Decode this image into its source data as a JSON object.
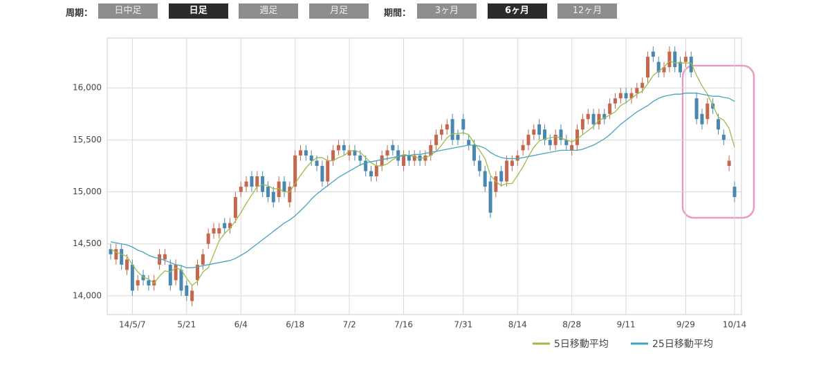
{
  "toolbar": {
    "period_label": "周期：",
    "period_buttons": [
      {
        "label": "日中足",
        "active": false
      },
      {
        "label": "日足",
        "active": true
      },
      {
        "label": "週足",
        "active": false
      },
      {
        "label": "月足",
        "active": false
      }
    ],
    "range_label": "期間：",
    "range_buttons": [
      {
        "label": "3ヶ月",
        "active": false
      },
      {
        "label": "6ヶ月",
        "active": true
      },
      {
        "label": "12ヶ月",
        "active": false
      }
    ]
  },
  "chart_data": {
    "type": "candlestick",
    "categories": [
      null,
      null,
      null,
      null,
      "14/5/7",
      null,
      null,
      null,
      null,
      null,
      null,
      null,
      null,
      null,
      "5/21",
      null,
      null,
      null,
      null,
      null,
      null,
      null,
      null,
      null,
      "6/4",
      null,
      null,
      null,
      null,
      null,
      null,
      null,
      null,
      null,
      "6/18",
      null,
      null,
      null,
      null,
      null,
      null,
      null,
      null,
      null,
      "7/2",
      null,
      null,
      null,
      null,
      null,
      null,
      null,
      null,
      null,
      "7/16",
      null,
      null,
      null,
      null,
      null,
      null,
      null,
      null,
      null,
      null,
      "7/31",
      null,
      null,
      null,
      null,
      null,
      null,
      null,
      null,
      null,
      "8/14",
      null,
      null,
      null,
      null,
      null,
      null,
      null,
      null,
      null,
      "8/28",
      null,
      null,
      null,
      null,
      null,
      null,
      null,
      null,
      null,
      "9/11",
      null,
      null,
      null,
      null,
      null,
      null,
      null,
      null,
      null,
      null,
      "9/29",
      null,
      null,
      null,
      null,
      null,
      null,
      null,
      null,
      "10/14"
    ],
    "open": [
      14450,
      14350,
      14450,
      14250,
      14300,
      14100,
      14200,
      14150,
      14100,
      14300,
      14350,
      14300,
      14150,
      14250,
      14100,
      13950,
      14150,
      14300,
      14500,
      14600,
      14600,
      14700,
      14650,
      14750,
      15000,
      15050,
      15150,
      15050,
      15150,
      15050,
      15000,
      14950,
      15100,
      14900,
      15050,
      15350,
      15400,
      15350,
      15300,
      15250,
      15100,
      15300,
      15400,
      15450,
      15350,
      15400,
      15350,
      15300,
      15200,
      15150,
      15250,
      15350,
      15450,
      15400,
      15250,
      15350,
      15300,
      15350,
      15300,
      15350,
      15450,
      15550,
      15600,
      15700,
      15550,
      15700,
      15500,
      15450,
      15300,
      15200,
      15100,
      15000,
      15200,
      15100,
      15250,
      15300,
      15400,
      15450,
      15550,
      15650,
      15600,
      15500,
      15450,
      15600,
      15500,
      15400,
      15450,
      15600,
      15700,
      15750,
      15650,
      15750,
      15750,
      15850,
      15900,
      15950,
      15900,
      15950,
      16000,
      16100,
      16350,
      16250,
      16150,
      16200,
      16350,
      16250,
      16250,
      16300,
      15900,
      15750,
      15700,
      15850,
      15700,
      15550,
      15250,
      15050
    ],
    "high": [
      14500,
      14500,
      14500,
      14400,
      14350,
      14200,
      14250,
      14200,
      14200,
      14450,
      14450,
      14350,
      14350,
      14300,
      14150,
      14100,
      14350,
      14450,
      14650,
      14700,
      14700,
      14750,
      14750,
      15000,
      15100,
      15150,
      15200,
      15200,
      15200,
      15100,
      15050,
      15150,
      15150,
      15100,
      15400,
      15450,
      15450,
      15400,
      15350,
      15300,
      15350,
      15450,
      15500,
      15500,
      15450,
      15450,
      15400,
      15350,
      15250,
      15300,
      15400,
      15450,
      15500,
      15450,
      15400,
      15400,
      15400,
      15400,
      15400,
      15500,
      15600,
      15650,
      15700,
      15750,
      15600,
      15750,
      15550,
      15500,
      15350,
      15250,
      15150,
      15200,
      15250,
      15350,
      15350,
      15400,
      15500,
      15600,
      15650,
      15700,
      15650,
      15550,
      15600,
      15650,
      15550,
      15500,
      15650,
      15750,
      15800,
      15800,
      15800,
      15800,
      15900,
      15950,
      16000,
      16000,
      16000,
      16050,
      16100,
      16350,
      16400,
      16300,
      16250,
      16400,
      16400,
      16300,
      16350,
      16350,
      15950,
      15800,
      15900,
      15900,
      15750,
      15600,
      15350,
      15100
    ],
    "low": [
      14350,
      14300,
      14250,
      14200,
      14000,
      14050,
      14100,
      14050,
      14050,
      14250,
      14300,
      14050,
      14100,
      14000,
      13950,
      13900,
      14100,
      14250,
      14450,
      14550,
      14550,
      14600,
      14600,
      14700,
      14950,
      15000,
      15000,
      15000,
      14950,
      14900,
      14850,
      14900,
      14950,
      14850,
      15000,
      15300,
      15300,
      15250,
      15200,
      15050,
      15050,
      15250,
      15350,
      15350,
      15300,
      15300,
      15250,
      15150,
      15100,
      15100,
      15200,
      15300,
      15350,
      15250,
      15200,
      15250,
      15250,
      15250,
      15250,
      15300,
      15400,
      15500,
      15550,
      15450,
      15450,
      15550,
      15400,
      15250,
      15150,
      15000,
      14750,
      14950,
      15050,
      15050,
      15200,
      15250,
      15350,
      15400,
      15500,
      15500,
      15450,
      15400,
      15400,
      15450,
      15400,
      15350,
      15400,
      15550,
      15650,
      15600,
      15600,
      15650,
      15700,
      15800,
      15850,
      15850,
      15850,
      15900,
      15950,
      16050,
      16250,
      16100,
      16100,
      16150,
      16150,
      16100,
      16200,
      16100,
      15650,
      15600,
      15650,
      15750,
      15550,
      15450,
      15200,
      14900
    ],
    "close": [
      14400,
      14450,
      14300,
      14350,
      14050,
      14150,
      14150,
      14100,
      14150,
      14400,
      14400,
      14100,
      14300,
      14050,
      14000,
      14050,
      14300,
      14400,
      14600,
      14650,
      14650,
      14650,
      14700,
      14950,
      15050,
      15100,
      15050,
      15150,
      15000,
      14950,
      14900,
      15100,
      15000,
      15050,
      15350,
      15400,
      15350,
      15300,
      15250,
      15100,
      15300,
      15400,
      15450,
      15400,
      15400,
      15350,
      15300,
      15200,
      15150,
      15250,
      15350,
      15400,
      15400,
      15300,
      15350,
      15300,
      15350,
      15300,
      15350,
      15450,
      15550,
      15600,
      15650,
      15500,
      15500,
      15600,
      15450,
      15300,
      15200,
      15050,
      14800,
      15150,
      15100,
      15300,
      15300,
      15350,
      15450,
      15550,
      15600,
      15550,
      15500,
      15450,
      15550,
      15500,
      15450,
      15450,
      15600,
      15700,
      15750,
      15650,
      15750,
      15700,
      15850,
      15900,
      15950,
      15900,
      15950,
      16000,
      16050,
      16300,
      16300,
      16150,
      16200,
      16350,
      16200,
      16150,
      16300,
      16150,
      15700,
      15650,
      15850,
      15800,
      15600,
      15500,
      15300,
      14950
    ],
    "up_color": "#c4674c",
    "down_color": "#4a87b0",
    "series": [
      {
        "name": "5日移動平均",
        "color": "#9cbb4a",
        "values": [
          14450,
          14420,
          14400,
          14380,
          14300,
          14230,
          14180,
          14160,
          14120,
          14190,
          14240,
          14230,
          14270,
          14250,
          14170,
          14100,
          14140,
          14230,
          14270,
          14400,
          14530,
          14600,
          14650,
          14720,
          14800,
          14890,
          14970,
          15050,
          15070,
          15060,
          15030,
          15030,
          15000,
          15000,
          15080,
          15160,
          15230,
          15290,
          15330,
          15330,
          15300,
          15300,
          15330,
          15350,
          15390,
          15400,
          15380,
          15330,
          15280,
          15250,
          15250,
          15270,
          15310,
          15340,
          15360,
          15350,
          15340,
          15320,
          15330,
          15350,
          15390,
          15450,
          15520,
          15560,
          15560,
          15570,
          15550,
          15470,
          15400,
          15320,
          15160,
          15100,
          15060,
          15080,
          15080,
          15160,
          15240,
          15340,
          15430,
          15490,
          15510,
          15520,
          15530,
          15520,
          15500,
          15480,
          15510,
          15550,
          15590,
          15630,
          15690,
          15710,
          15740,
          15770,
          15830,
          15860,
          15900,
          15940,
          15970,
          16040,
          16120,
          16160,
          16200,
          16260,
          16240,
          16240,
          16240,
          16240,
          16120,
          16020,
          15940,
          15830,
          15720,
          15690,
          15610,
          15430
        ]
      },
      {
        "name": "25日移動平均",
        "color": "#45a3bd",
        "values": [
          14520,
          14510,
          14500,
          14490,
          14470,
          14440,
          14420,
          14390,
          14370,
          14360,
          14340,
          14320,
          14300,
          14290,
          14270,
          14270,
          14280,
          14290,
          14300,
          14310,
          14320,
          14330,
          14340,
          14360,
          14390,
          14420,
          14460,
          14500,
          14540,
          14580,
          14620,
          14660,
          14700,
          14730,
          14770,
          14820,
          14870,
          14930,
          14980,
          15020,
          15060,
          15100,
          15140,
          15170,
          15200,
          15230,
          15260,
          15280,
          15290,
          15300,
          15310,
          15320,
          15330,
          15340,
          15350,
          15350,
          15360,
          15360,
          15370,
          15380,
          15390,
          15400,
          15410,
          15420,
          15430,
          15440,
          15450,
          15450,
          15440,
          15420,
          15380,
          15350,
          15330,
          15320,
          15320,
          15320,
          15330,
          15340,
          15350,
          15360,
          15370,
          15380,
          15390,
          15400,
          15400,
          15400,
          15400,
          15410,
          15430,
          15450,
          15480,
          15510,
          15550,
          15600,
          15650,
          15690,
          15730,
          15770,
          15800,
          15830,
          15870,
          15900,
          15920,
          15930,
          15940,
          15940,
          15950,
          15950,
          15950,
          15940,
          15930,
          15920,
          15920,
          15910,
          15900,
          15870
        ]
      }
    ],
    "ylim": [
      13820,
      16480
    ],
    "yticks": [
      {
        "value": 14000,
        "label": "14,000"
      },
      {
        "value": 14500,
        "label": "14,500"
      },
      {
        "value": 15000,
        "label": "15,000"
      },
      {
        "value": 15500,
        "label": "15,500"
      },
      {
        "value": 16000,
        "label": "16,000"
      }
    ],
    "grid": true
  }
}
